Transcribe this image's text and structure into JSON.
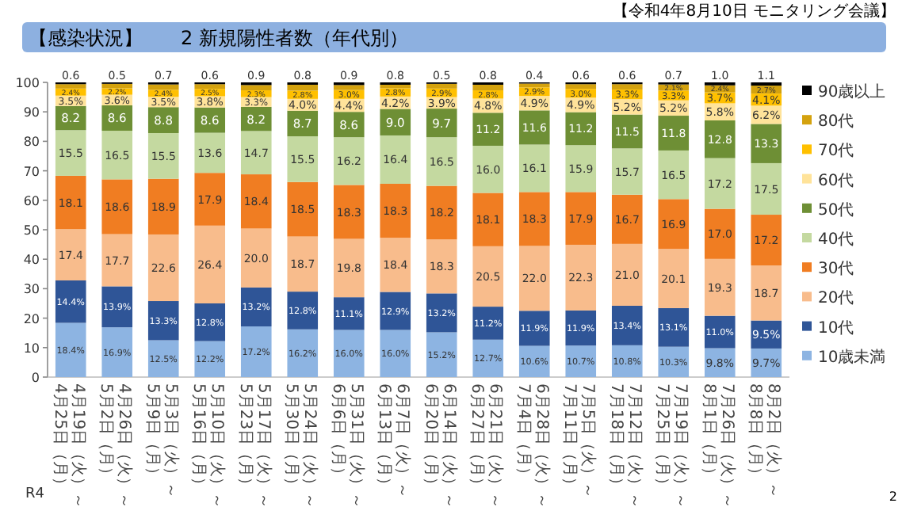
{
  "chart_data": {
    "type": "bar",
    "stacked": true,
    "title": "【感染状況】　　2 新規陽性者数（年代別）",
    "annotations": [
      "【令和4年8月10日 モニタリング会議】",
      "R4",
      "2"
    ],
    "categories": [
      "4月19日（火）～\n4月25日（月）",
      "4月26日（火）～\n5月2日（月）",
      "5月3日（火）～\n5月9日（月）",
      "5月10日（火）～\n5月16日（月）",
      "5月17日（火）～\n5月23日（月）",
      "5月24日（火）～\n5月30日（月）",
      "5月31日（火）～\n6月6日（月）",
      "6月7日（火）～\n6月13日（月）",
      "6月14日（火）～\n6月20日（月）",
      "6月21日（火）～\n6月27日（月）",
      "6月28日（火）～\n7月4日（月）",
      "7月5日（火）～\n7月11日（月）",
      "7月12日（火）～\n7月18日（月）",
      "7月19日（火）～\n7月25日（月）",
      "7月26日（火）～\n8月1日（月）",
      "8月2日（火）～\n8月8日（月）"
    ],
    "ylim": [
      0,
      100
    ],
    "yticks": [
      0,
      10,
      20,
      30,
      40,
      50,
      60,
      70,
      80,
      90,
      100
    ],
    "legend": "right",
    "series": [
      {
        "name": "10歳未満",
        "color": "#8db4e2",
        "values": [
          18.4,
          16.9,
          12.5,
          12.2,
          17.2,
          16.2,
          16.0,
          16.0,
          15.2,
          12.7,
          10.6,
          10.7,
          10.8,
          10.3,
          9.8,
          9.7
        ],
        "value_labels": [
          "18.4%",
          "16.9%",
          "12.5%",
          "12.2%",
          "17.2%",
          "16.2%",
          "16.0%",
          "16.0%",
          "15.2%",
          "12.7%",
          "10.6%",
          "10.7%",
          "10.8%",
          "10.3%",
          "9.8%",
          "9.7%"
        ]
      },
      {
        "name": "10代",
        "color": "#2f5597",
        "values": [
          14.4,
          13.9,
          13.3,
          12.8,
          13.2,
          12.8,
          11.1,
          12.9,
          13.2,
          11.2,
          11.9,
          11.9,
          13.4,
          13.1,
          11.0,
          9.5
        ],
        "value_labels": [
          "14.4%",
          "13.9%",
          "13.3%",
          "12.8%",
          "13.2%",
          "12.8%",
          "11.1%",
          "12.9%",
          "13.2%",
          "11.2%",
          "11.9%",
          "11.9%",
          "13.4%",
          "13.1%",
          "11.0%",
          "9.5%"
        ]
      },
      {
        "name": "20代",
        "color": "#f8bc8c",
        "values": [
          17.4,
          17.7,
          22.6,
          26.4,
          20.0,
          18.7,
          19.8,
          18.4,
          18.3,
          20.5,
          22.0,
          22.3,
          21.0,
          20.1,
          19.3,
          18.7
        ],
        "value_labels": [
          "17.4",
          "17.7",
          "22.6",
          "26.4",
          "20.0",
          "18.7",
          "19.8",
          "18.4",
          "18.3",
          "20.5",
          "22.0",
          "22.3",
          "21.0",
          "20.1",
          "19.3",
          "18.7"
        ]
      },
      {
        "name": "30代",
        "color": "#f07d22",
        "values": [
          18.1,
          18.6,
          18.9,
          17.9,
          18.4,
          18.5,
          18.3,
          18.3,
          18.2,
          18.1,
          18.3,
          17.9,
          16.7,
          16.9,
          17.0,
          17.2
        ],
        "value_labels": [
          "18.1",
          "18.6",
          "18.9",
          "17.9",
          "18.4",
          "18.5",
          "18.3",
          "18.3",
          "18.2",
          "18.1",
          "18.3",
          "17.9",
          "16.7",
          "16.9",
          "17.0",
          "17.2"
        ]
      },
      {
        "name": "40代",
        "color": "#c4d9a0",
        "values": [
          15.5,
          16.5,
          15.5,
          13.6,
          14.7,
          15.5,
          16.2,
          16.4,
          16.5,
          16.0,
          16.1,
          15.9,
          15.7,
          16.5,
          17.2,
          17.5
        ],
        "value_labels": [
          "15.5",
          "16.5",
          "15.5",
          "13.6",
          "14.7",
          "15.5",
          "16.2",
          "16.4",
          "16.5",
          "16.0",
          "16.1",
          "15.9",
          "15.7",
          "16.5",
          "17.2",
          "17.5"
        ]
      },
      {
        "name": "50代",
        "color": "#6e8f35",
        "values": [
          8.2,
          8.6,
          8.8,
          8.6,
          8.2,
          8.7,
          8.6,
          9.0,
          9.7,
          11.2,
          11.6,
          11.2,
          11.5,
          11.8,
          12.8,
          13.3
        ],
        "value_labels": [
          "8.2",
          "8.6",
          "8.8",
          "8.6",
          "8.2",
          "8.7",
          "8.6",
          "9.0",
          "9.7",
          "11.2",
          "11.6",
          "11.2",
          "11.5",
          "11.8",
          "12.8",
          "13.3"
        ]
      },
      {
        "name": "60代",
        "color": "#ffe39a",
        "values": [
          3.5,
          3.6,
          3.5,
          3.8,
          3.3,
          4.0,
          4.4,
          4.2,
          3.9,
          4.8,
          4.9,
          4.9,
          5.2,
          5.2,
          5.8,
          6.2
        ],
        "value_labels": [
          "3.5%",
          "3.6%",
          "3.5%",
          "3.8%",
          "3.3%",
          "4.0%",
          "4.4%",
          "4.2%",
          "3.9%",
          "4.8%",
          "4.9%",
          "4.9%",
          "5.2%",
          "5.2%",
          "5.8%",
          "6.2%"
        ]
      },
      {
        "name": "70代",
        "color": "#ffc000",
        "values": [
          2.4,
          2.2,
          2.4,
          2.5,
          2.3,
          2.8,
          3.0,
          2.8,
          2.9,
          2.8,
          2.9,
          3.0,
          3.3,
          3.3,
          3.7,
          4.1
        ],
        "value_labels": [
          "2.4%",
          "2.2%",
          "2.4%",
          "2.5%",
          "2.3%",
          "2.8%",
          "3.0%",
          "2.8%",
          "2.9%",
          "2.8%",
          "2.9%",
          "3.0%",
          "3.3%",
          "3.3%",
          "3.7%",
          "4.1%"
        ]
      },
      {
        "name": "80代",
        "color": "#d4a20e",
        "values": [
          1.5,
          1.5,
          1.8,
          1.6,
          1.8,
          2.0,
          1.7,
          1.2,
          1.6,
          1.9,
          1.3,
          1.6,
          1.8,
          2.1,
          2.4,
          2.7
        ],
        "value_labels": [
          null,
          null,
          null,
          null,
          null,
          null,
          null,
          null,
          null,
          null,
          null,
          null,
          null,
          "2.1%",
          "2.4%",
          "2.7%"
        ]
      },
      {
        "name": "90歳以上",
        "color": "#000000",
        "values": [
          0.6,
          0.5,
          0.7,
          0.6,
          0.9,
          0.8,
          0.9,
          0.8,
          0.5,
          0.8,
          0.4,
          0.6,
          0.6,
          0.7,
          1.0,
          1.1
        ],
        "value_labels": [
          "0.6",
          "0.5",
          "0.7",
          "0.6",
          "0.9",
          "0.8",
          "0.9",
          "0.8",
          "0.5",
          "0.8",
          "0.4",
          "0.6",
          "0.6",
          "0.7",
          "1.0",
          "1.1"
        ]
      }
    ]
  }
}
